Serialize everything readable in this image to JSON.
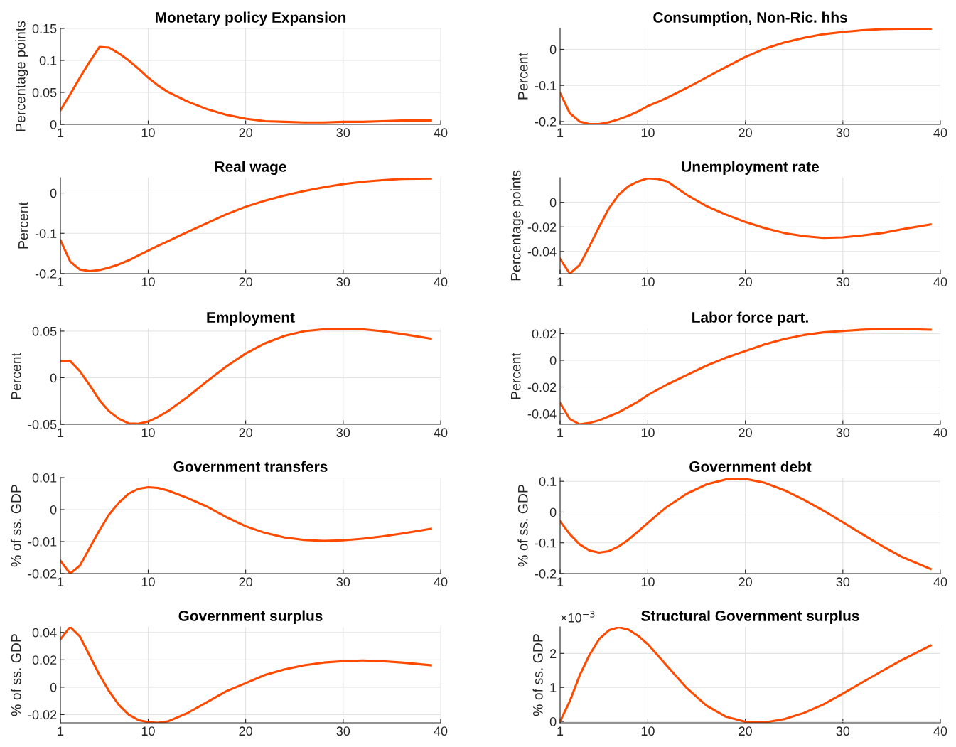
{
  "chart_data": [
    {
      "type": "line",
      "title": "Monetary policy Expansion",
      "ylabel": "Percentage points",
      "color": "#ff4a00",
      "grid": true,
      "xlim": [
        1,
        40
      ],
      "xticks": [
        1,
        10,
        20,
        30,
        40
      ],
      "ylim": [
        0,
        0.15
      ],
      "yticks": [
        0,
        0.05,
        0.1,
        0.15
      ],
      "x": [
        1,
        2,
        3,
        4,
        5,
        6,
        7,
        8,
        9,
        10,
        11,
        12,
        14,
        16,
        18,
        20,
        22,
        24,
        26,
        28,
        30,
        32,
        34,
        36,
        39
      ],
      "values": [
        0.022,
        0.047,
        0.073,
        0.098,
        0.121,
        0.12,
        0.111,
        0.1,
        0.087,
        0.073,
        0.061,
        0.051,
        0.036,
        0.024,
        0.015,
        0.009,
        0.005,
        0.004,
        0.003,
        0.003,
        0.004,
        0.004,
        0.005,
        0.006,
        0.006
      ]
    },
    {
      "type": "line",
      "title": "Consumption, Non-Ric. hhs",
      "ylabel": "Percent",
      "color": "#ff4a00",
      "grid": true,
      "xlim": [
        1,
        40
      ],
      "xticks": [
        1,
        10,
        20,
        30,
        40
      ],
      "ylim": [
        -0.208,
        0.058
      ],
      "yticks": [
        -0.2,
        -0.1,
        0
      ],
      "x": [
        1,
        2,
        3,
        4,
        5,
        6,
        7,
        8,
        9,
        10,
        11,
        12,
        14,
        16,
        18,
        20,
        22,
        24,
        26,
        28,
        30,
        32,
        34,
        36,
        39
      ],
      "values": [
        -0.121,
        -0.177,
        -0.2,
        -0.207,
        -0.207,
        -0.202,
        -0.194,
        -0.184,
        -0.172,
        -0.157,
        -0.146,
        -0.134,
        -0.107,
        -0.078,
        -0.049,
        -0.021,
        0.002,
        0.019,
        0.032,
        0.042,
        0.048,
        0.053,
        0.056,
        0.057,
        0.057
      ]
    },
    {
      "type": "line",
      "title": "Real wage",
      "ylabel": "Percent",
      "color": "#ff4a00",
      "grid": true,
      "xlim": [
        1,
        40
      ],
      "xticks": [
        1,
        10,
        20,
        30,
        40
      ],
      "ylim": [
        -0.2,
        0.038
      ],
      "yticks": [
        -0.2,
        -0.1,
        0
      ],
      "x": [
        1,
        2,
        3,
        4,
        5,
        6,
        7,
        8,
        9,
        10,
        11,
        12,
        14,
        16,
        18,
        20,
        22,
        24,
        26,
        28,
        30,
        32,
        34,
        36,
        39
      ],
      "values": [
        -0.117,
        -0.17,
        -0.19,
        -0.194,
        -0.191,
        -0.185,
        -0.177,
        -0.167,
        -0.155,
        -0.143,
        -0.131,
        -0.12,
        -0.097,
        -0.075,
        -0.053,
        -0.034,
        -0.019,
        -0.006,
        0.005,
        0.014,
        0.022,
        0.028,
        0.032,
        0.035,
        0.036
      ]
    },
    {
      "type": "line",
      "title": "Unemployment rate",
      "ylabel": "Percentage points",
      "color": "#ff4a00",
      "grid": true,
      "xlim": [
        1,
        40
      ],
      "xticks": [
        1,
        10,
        20,
        30,
        40
      ],
      "ylim": [
        -0.058,
        0.02
      ],
      "yticks": [
        -0.04,
        -0.02,
        0
      ],
      "x": [
        1,
        2,
        3,
        4,
        5,
        6,
        7,
        8,
        9,
        10,
        11,
        12,
        14,
        16,
        18,
        20,
        22,
        24,
        26,
        28,
        30,
        32,
        34,
        36,
        39
      ],
      "values": [
        -0.046,
        -0.058,
        -0.051,
        -0.036,
        -0.02,
        -0.005,
        0.006,
        0.013,
        0.017,
        0.0195,
        0.019,
        0.017,
        0.006,
        -0.003,
        -0.01,
        -0.016,
        -0.021,
        -0.025,
        -0.0275,
        -0.029,
        -0.0285,
        -0.027,
        -0.025,
        -0.022,
        -0.018
      ]
    },
    {
      "type": "line",
      "title": "Employment",
      "ylabel": "Percent",
      "color": "#ff4a00",
      "grid": true,
      "xlim": [
        1,
        40
      ],
      "xticks": [
        1,
        10,
        20,
        30,
        40
      ],
      "ylim": [
        -0.05,
        0.053
      ],
      "yticks": [
        -0.05,
        0,
        0.05
      ],
      "x": [
        1,
        2,
        3,
        4,
        5,
        6,
        7,
        8,
        9,
        10,
        11,
        12,
        14,
        16,
        18,
        20,
        22,
        24,
        26,
        28,
        30,
        32,
        34,
        36,
        39
      ],
      "values": [
        0.018,
        0.018,
        0.007,
        -0.008,
        -0.024,
        -0.036,
        -0.044,
        -0.049,
        -0.0495,
        -0.047,
        -0.042,
        -0.036,
        -0.021,
        -0.004,
        0.012,
        0.026,
        0.037,
        0.045,
        0.05,
        0.052,
        0.0525,
        0.052,
        0.05,
        0.047,
        0.042
      ]
    },
    {
      "type": "line",
      "title": "Labor force part.",
      "ylabel": "Percent",
      "color": "#ff4a00",
      "grid": true,
      "xlim": [
        1,
        40
      ],
      "xticks": [
        1,
        10,
        20,
        30,
        40
      ],
      "ylim": [
        -0.048,
        0.024
      ],
      "yticks": [
        -0.04,
        -0.02,
        0,
        0.02
      ],
      "x": [
        1,
        2,
        3,
        4,
        5,
        6,
        7,
        8,
        9,
        10,
        11,
        12,
        14,
        16,
        18,
        20,
        22,
        24,
        26,
        28,
        30,
        32,
        34,
        36,
        39
      ],
      "values": [
        -0.032,
        -0.044,
        -0.048,
        -0.047,
        -0.045,
        -0.042,
        -0.039,
        -0.035,
        -0.031,
        -0.026,
        -0.022,
        -0.018,
        -0.011,
        -0.004,
        0.002,
        0.007,
        0.012,
        0.016,
        0.019,
        0.021,
        0.022,
        0.023,
        0.0235,
        0.0235,
        0.023
      ]
    },
    {
      "type": "line",
      "title": "Government transfers",
      "ylabel": "% of ss. GDP",
      "color": "#ff4a00",
      "grid": true,
      "xlim": [
        1,
        40
      ],
      "xticks": [
        1,
        10,
        20,
        30,
        40
      ],
      "ylim": [
        -0.02,
        0.01
      ],
      "yticks": [
        -0.02,
        -0.01,
        0,
        0.01
      ],
      "x": [
        1,
        2,
        3,
        4,
        5,
        6,
        7,
        8,
        9,
        10,
        11,
        12,
        14,
        16,
        18,
        20,
        22,
        24,
        26,
        28,
        30,
        32,
        34,
        36,
        39
      ],
      "values": [
        -0.016,
        -0.02,
        -0.0175,
        -0.012,
        -0.0065,
        -0.0015,
        0.0022,
        0.005,
        0.0065,
        0.007,
        0.0068,
        0.006,
        0.0037,
        0.001,
        -0.0023,
        -0.0052,
        -0.0073,
        -0.0087,
        -0.0095,
        -0.0098,
        -0.0096,
        -0.0091,
        -0.0084,
        -0.0075,
        -0.006
      ]
    },
    {
      "type": "line",
      "title": "Government debt",
      "ylabel": "% of ss. GDP",
      "color": "#ff4a00",
      "grid": true,
      "xlim": [
        1,
        40
      ],
      "xticks": [
        1,
        10,
        20,
        30,
        40
      ],
      "ylim": [
        -0.2,
        0.112
      ],
      "yticks": [
        -0.2,
        -0.1,
        0,
        0.1
      ],
      "x": [
        1,
        2,
        3,
        4,
        5,
        6,
        7,
        8,
        9,
        10,
        11,
        12,
        14,
        16,
        18,
        20,
        22,
        24,
        26,
        28,
        30,
        32,
        34,
        36,
        39
      ],
      "values": [
        -0.03,
        -0.072,
        -0.105,
        -0.125,
        -0.132,
        -0.127,
        -0.112,
        -0.09,
        -0.063,
        -0.035,
        -0.008,
        0.018,
        0.06,
        0.09,
        0.106,
        0.108,
        0.095,
        0.071,
        0.04,
        0.005,
        -0.033,
        -0.072,
        -0.11,
        -0.145,
        -0.185
      ]
    },
    {
      "type": "line",
      "title": "Government surplus",
      "ylabel": "% of ss. GDP",
      "color": "#ff4a00",
      "grid": true,
      "xlim": [
        1,
        40
      ],
      "xticks": [
        1,
        10,
        20,
        30,
        40
      ],
      "ylim": [
        -0.026,
        0.044
      ],
      "yticks": [
        -0.02,
        0,
        0.02,
        0.04
      ],
      "x": [
        1,
        2,
        3,
        4,
        5,
        6,
        7,
        8,
        9,
        10,
        11,
        12,
        14,
        16,
        18,
        20,
        22,
        24,
        26,
        28,
        30,
        32,
        34,
        36,
        39
      ],
      "values": [
        0.035,
        0.044,
        0.037,
        0.023,
        0.009,
        -0.003,
        -0.013,
        -0.02,
        -0.024,
        -0.0255,
        -0.026,
        -0.025,
        -0.019,
        -0.011,
        -0.003,
        0.003,
        0.009,
        0.013,
        0.016,
        0.018,
        0.019,
        0.0195,
        0.019,
        0.018,
        0.016
      ]
    },
    {
      "type": "line",
      "title": "Structural Government surplus",
      "ylabel": "% of ss. GDP",
      "annotations": [
        "×10$^{−3}$"
      ],
      "color": "#ff4a00",
      "grid": true,
      "xlim": [
        1,
        40
      ],
      "xticks": [
        1,
        10,
        20,
        30,
        40
      ],
      "ylim": [
        -0.04,
        2.78
      ],
      "yticks": [
        0,
        1,
        2
      ],
      "x": [
        1,
        2,
        3,
        4,
        5,
        6,
        7,
        8,
        9,
        10,
        11,
        12,
        14,
        16,
        18,
        20,
        22,
        24,
        26,
        28,
        30,
        32,
        34,
        36,
        39
      ],
      "values": [
        0,
        0.6,
        1.35,
        1.95,
        2.42,
        2.68,
        2.77,
        2.7,
        2.52,
        2.27,
        1.95,
        1.62,
        0.98,
        0.47,
        0.14,
        -0.01,
        -0.03,
        0.07,
        0.25,
        0.5,
        0.82,
        1.15,
        1.48,
        1.8,
        2.23
      ]
    }
  ]
}
